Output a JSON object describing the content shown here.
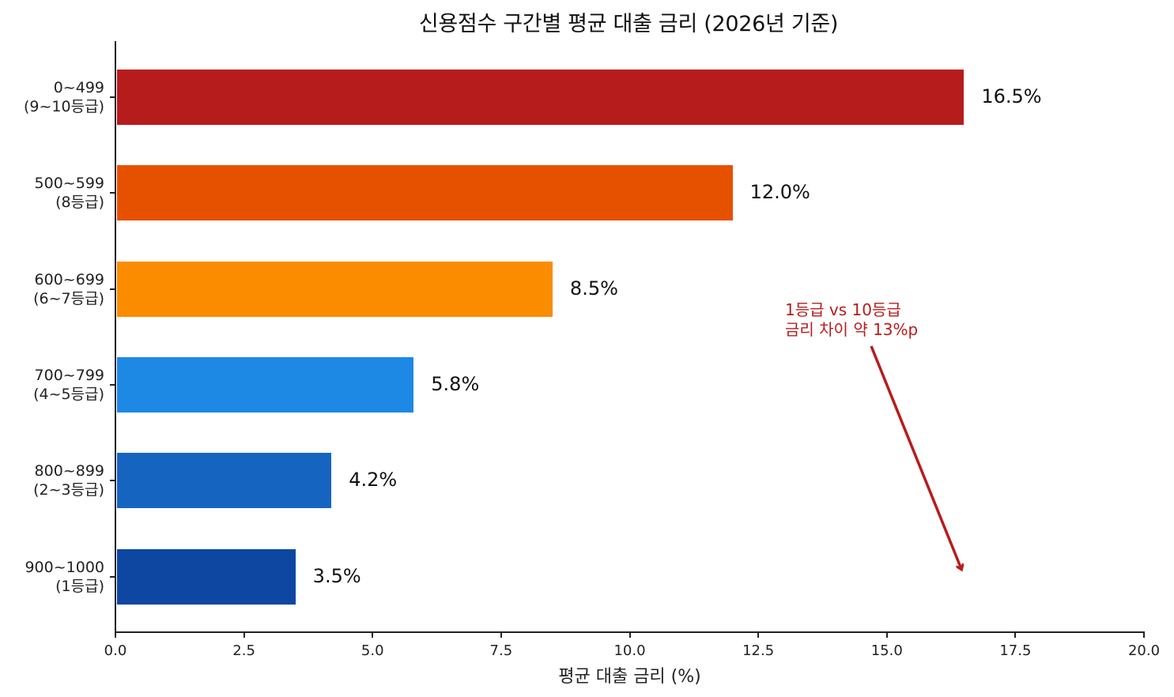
{
  "chart_data": {
    "type": "bar",
    "orientation": "horizontal",
    "title": "신용점수 구간별 평균 대출 금리 (2026년 기준)",
    "xlabel": "평균 대출 금리 (%)",
    "ylabel": "",
    "xlim": [
      0,
      20
    ],
    "xticks": [
      "0.0",
      "2.5",
      "5.0",
      "7.5",
      "10.0",
      "12.5",
      "15.0",
      "17.5",
      "20.0"
    ],
    "grid": false,
    "legend": null,
    "categories": [
      "0~499\n(9~10등급)",
      "500~599\n(8등급)",
      "600~699\n(6~7등급)",
      "700~799\n(4~5등급)",
      "800~899\n(2~3등급)",
      "900~1000\n(1등급)"
    ],
    "values": [
      16.5,
      12.0,
      8.5,
      5.8,
      4.2,
      3.5
    ],
    "value_labels": [
      "16.5%",
      "12.0%",
      "8.5%",
      "5.8%",
      "4.2%",
      "3.5%"
    ],
    "colors": [
      "#b71c1c",
      "#e65100",
      "#fb8c00",
      "#1e88e5",
      "#1565c0",
      "#0d47a1"
    ],
    "annotations": [
      {
        "text": "1등급 vs 10등급\n금리 차이 약 13%p",
        "color": "#b71c1c",
        "arrow_from": [
          14.7,
          0.6
        ],
        "arrow_to": [
          16.5,
          5
        ]
      }
    ]
  }
}
